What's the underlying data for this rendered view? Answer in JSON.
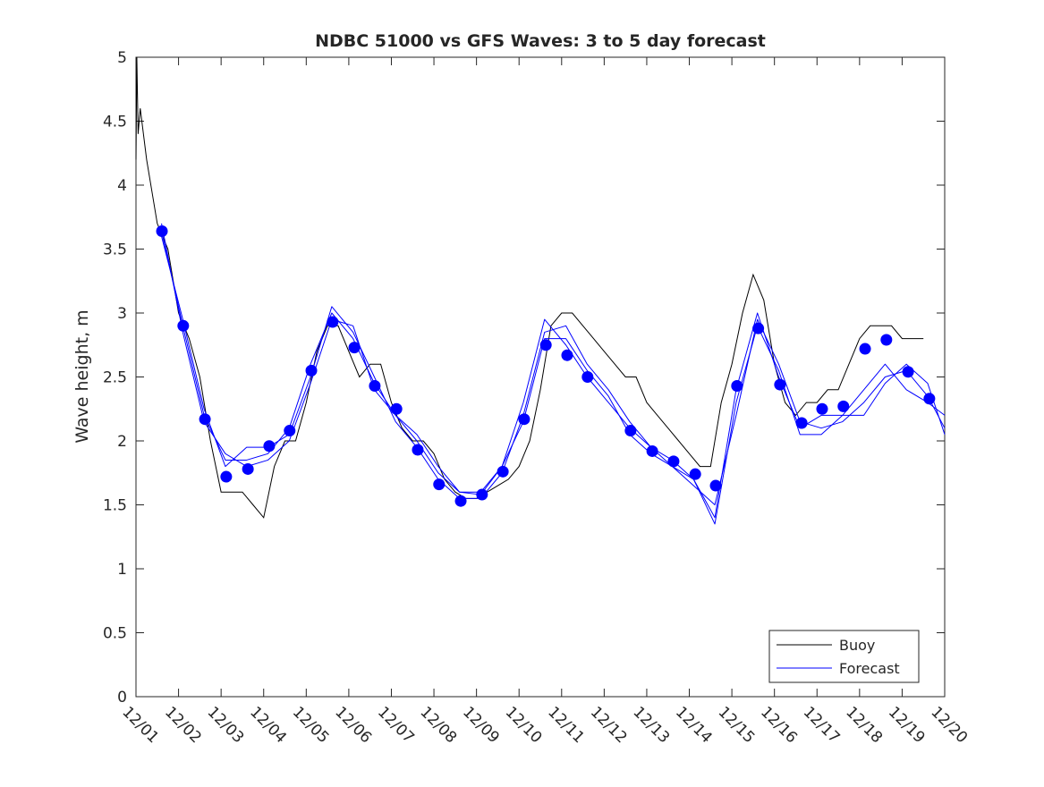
{
  "chart_data": {
    "type": "line",
    "title": "NDBC 51000 vs GFS Waves: 3 to 5 day forecast",
    "xlabel": "",
    "ylabel": "Wave height, m",
    "xlim_days": [
      0,
      19
    ],
    "ylim": [
      0,
      5
    ],
    "x_tick_labels": [
      "12/01",
      "12/02",
      "12/03",
      "12/04",
      "12/05",
      "12/06",
      "12/07",
      "12/08",
      "12/09",
      "12/10",
      "12/11",
      "12/12",
      "12/13",
      "12/14",
      "12/15",
      "12/16",
      "12/17",
      "12/18",
      "12/19",
      "12/20"
    ],
    "y_ticks": [
      0,
      0.5,
      1,
      1.5,
      2,
      2.5,
      3,
      3.5,
      4,
      4.5,
      5
    ],
    "y_tick_labels": [
      "0",
      "0.5",
      "1",
      "1.5",
      "2",
      "2.5",
      "3",
      "3.5",
      "4",
      "4.5",
      "5"
    ],
    "grid": false,
    "legend": {
      "placement": "bottom-right",
      "entries": [
        "Buoy",
        "Forecast"
      ]
    },
    "colors": {
      "buoy": "#000000",
      "forecast": "#0000ff"
    },
    "buoy": {
      "x": [
        0,
        0.02,
        0.05,
        0.1,
        0.25,
        0.5,
        0.75,
        1.0,
        1.25,
        1.5,
        1.75,
        2.0,
        2.25,
        2.5,
        2.75,
        3.0,
        3.25,
        3.5,
        3.75,
        4.0,
        4.25,
        4.5,
        4.75,
        5.0,
        5.25,
        5.5,
        5.75,
        6.0,
        6.25,
        6.5,
        6.75,
        7.0,
        7.25,
        7.5,
        7.75,
        8.0,
        8.25,
        8.5,
        8.75,
        9.0,
        9.25,
        9.5,
        9.75,
        10.0,
        10.25,
        10.5,
        10.75,
        11.0,
        11.25,
        11.5,
        11.75,
        12.0,
        12.25,
        12.5,
        12.75,
        13.0,
        13.25,
        13.5,
        13.75,
        14.0,
        14.25,
        14.5,
        14.75,
        15.0,
        15.25,
        15.5,
        15.75,
        16.0,
        16.25,
        16.5,
        16.75,
        17.0,
        17.25,
        17.5,
        17.75,
        18.0,
        18.25,
        18.5
      ],
      "y": [
        4.2,
        5.0,
        4.4,
        4.6,
        4.2,
        3.7,
        3.5,
        3.0,
        2.8,
        2.5,
        2.0,
        1.6,
        1.6,
        1.6,
        1.5,
        1.4,
        1.8,
        2.0,
        2.0,
        2.3,
        2.7,
        2.9,
        2.9,
        2.7,
        2.5,
        2.6,
        2.6,
        2.3,
        2.1,
        2.0,
        2.0,
        1.9,
        1.7,
        1.6,
        1.55,
        1.55,
        1.6,
        1.65,
        1.7,
        1.8,
        2.0,
        2.4,
        2.9,
        3.0,
        3.0,
        2.9,
        2.8,
        2.7,
        2.6,
        2.5,
        2.5,
        2.3,
        2.2,
        2.1,
        2.0,
        1.9,
        1.8,
        1.8,
        2.3,
        2.6,
        3.0,
        3.3,
        3.1,
        2.6,
        2.3,
        2.2,
        2.3,
        2.3,
        2.4,
        2.4,
        2.6,
        2.8,
        2.9,
        2.9,
        2.9,
        2.8,
        2.8,
        2.8
      ]
    },
    "forecast_x": [
      0.6,
      1.1,
      1.6,
      2.1,
      2.6,
      3.1,
      3.6,
      4.1,
      4.6,
      5.1,
      5.6,
      6.1,
      6.6,
      7.1,
      7.6,
      8.1,
      8.6,
      9.1,
      9.6,
      10.1,
      10.6,
      11.1,
      11.6,
      12.1,
      12.6,
      13.1,
      13.6,
      14.1,
      14.6,
      15.1,
      15.6,
      16.1,
      16.6,
      17.1,
      17.6,
      18.1,
      18.6,
      19.0
    ],
    "forecast_series": [
      {
        "name": "Forecast",
        "values": [
          3.64,
          2.9,
          2.2,
          1.85,
          1.85,
          1.9,
          2.1,
          2.6,
          3.0,
          2.8,
          2.45,
          2.2,
          2.0,
          1.75,
          1.6,
          1.6,
          1.8,
          2.3,
          2.95,
          2.75,
          2.5,
          2.3,
          2.1,
          1.95,
          1.85,
          1.7,
          1.4,
          2.4,
          3.0,
          2.5,
          2.1,
          2.2,
          2.2,
          2.4,
          2.6,
          2.4,
          2.3,
          2.2
        ]
      },
      {
        "name": "Forecast",
        "values": [
          3.6,
          2.95,
          2.25,
          1.8,
          1.95,
          1.95,
          2.05,
          2.5,
          3.05,
          2.85,
          2.5,
          2.15,
          1.95,
          1.7,
          1.55,
          1.55,
          1.75,
          2.2,
          2.85,
          2.9,
          2.6,
          2.4,
          2.15,
          1.95,
          1.8,
          1.65,
          1.5,
          2.2,
          2.95,
          2.6,
          2.15,
          2.1,
          2.15,
          2.3,
          2.5,
          2.55,
          2.35,
          2.1
        ]
      },
      {
        "name": "Forecast",
        "values": [
          3.7,
          2.85,
          2.15,
          1.9,
          1.8,
          1.85,
          2.0,
          2.45,
          2.95,
          2.9,
          2.4,
          2.2,
          2.05,
          1.8,
          1.6,
          1.58,
          1.8,
          2.15,
          2.8,
          2.8,
          2.55,
          2.35,
          2.05,
          1.9,
          1.8,
          1.7,
          1.35,
          2.3,
          2.9,
          2.55,
          2.05,
          2.05,
          2.2,
          2.2,
          2.45,
          2.6,
          2.45,
          2.05
        ]
      }
    ],
    "forecast_markers": {
      "x": [
        0.61,
        1.11,
        1.62,
        2.12,
        2.63,
        3.13,
        3.61,
        4.12,
        4.62,
        5.13,
        5.61,
        6.12,
        6.62,
        7.12,
        7.63,
        8.13,
        8.62,
        9.12,
        9.63,
        10.13,
        10.61,
        11.62,
        12.13,
        12.63,
        13.14,
        13.62,
        14.12,
        14.62,
        15.13,
        15.64,
        16.12,
        16.62,
        17.13,
        17.63,
        18.14,
        18.64
      ],
      "y": [
        3.64,
        2.9,
        2.17,
        1.72,
        1.78,
        1.96,
        2.08,
        2.55,
        2.93,
        2.73,
        2.43,
        2.25,
        1.93,
        1.66,
        1.53,
        1.58,
        1.76,
        2.17,
        2.75,
        2.67,
        2.5,
        2.08,
        1.92,
        1.84,
        1.74,
        1.65,
        2.43,
        2.88,
        2.44,
        2.14,
        2.25,
        2.27,
        2.72,
        2.79,
        2.54,
        2.33
      ]
    }
  }
}
